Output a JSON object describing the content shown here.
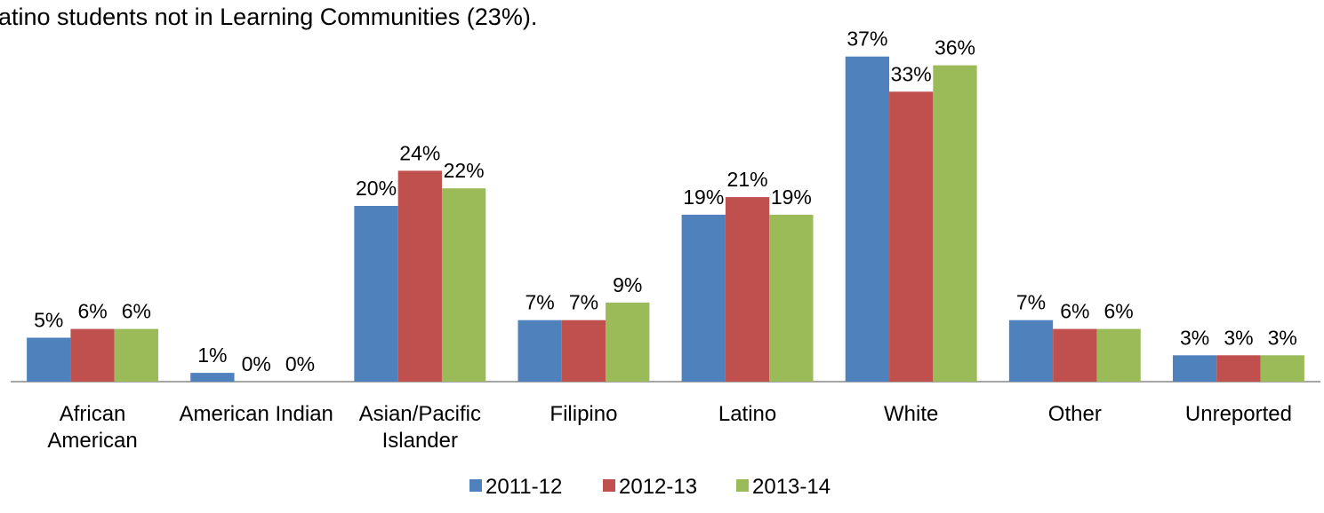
{
  "chart_data": {
    "type": "bar",
    "subtitle": "atino students not in Learning Communities (23%).",
    "categories": [
      "African American",
      "American Indian",
      "Asian/Pacific Islander",
      "Filipino",
      "Latino",
      "White",
      "Other",
      "Unreported"
    ],
    "series": [
      {
        "name": "2011-12",
        "color": "#4f81bd",
        "values": [
          5,
          1,
          20,
          7,
          19,
          37,
          7,
          3
        ],
        "value_labels": [
          "5%",
          "1%",
          "20%",
          "7%",
          "19%",
          "37%",
          "7%",
          "3%"
        ]
      },
      {
        "name": "2012-13",
        "color": "#c0504d",
        "values": [
          6,
          0,
          24,
          7,
          21,
          33,
          6,
          3
        ],
        "value_labels": [
          "6%",
          "0%",
          "24%",
          "7%",
          "21%",
          "33%",
          "6%",
          "3%"
        ]
      },
      {
        "name": "2013-14",
        "color": "#9bbb59",
        "values": [
          6,
          0,
          22,
          9,
          19,
          36,
          6,
          3
        ],
        "value_labels": [
          "6%",
          "0%",
          "22%",
          "9%",
          "19%",
          "36%",
          "6%",
          "3%"
        ]
      }
    ],
    "legend": "bottom"
  }
}
